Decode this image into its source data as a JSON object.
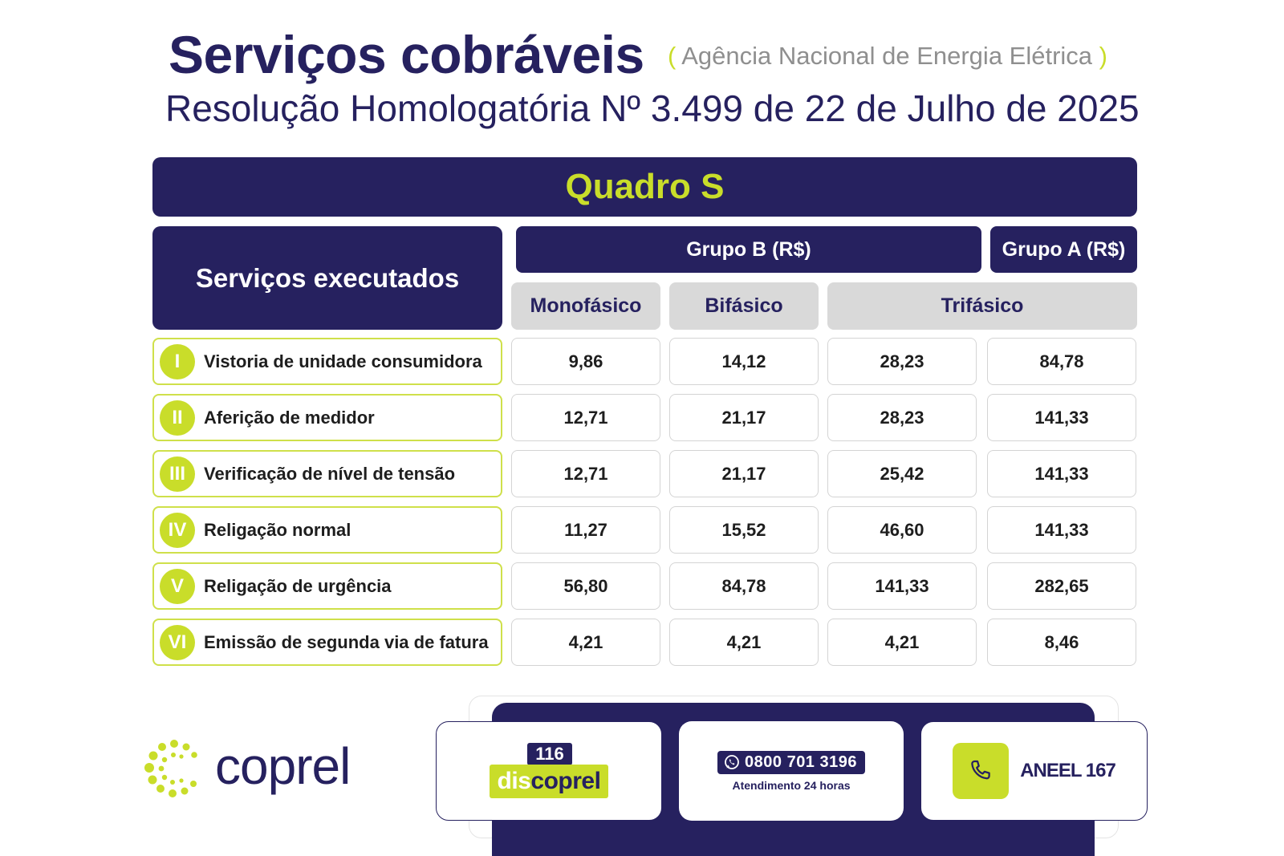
{
  "header": {
    "title": "Serviços cobráveis",
    "agency_open": "(",
    "agency": "Agência Nacional de Energia Elétrica",
    "agency_close": ")",
    "subtitle": "Resolução Homologatória Nº 3.499 de 22 de Julho de 2025"
  },
  "table": {
    "title": "Quadro S",
    "services_header": "Serviços executados",
    "group_b": "Grupo B (R$)",
    "group_a": "Grupo A (R$)",
    "sub_headers": [
      "Monofásico",
      "Bifásico",
      "Trifásico"
    ],
    "rows": [
      {
        "num": "I",
        "service": "Vistoria de unidade consumidora",
        "values": [
          "9,86",
          "14,12",
          "28,23",
          "84,78"
        ]
      },
      {
        "num": "II",
        "service": "Aferição de medidor",
        "values": [
          "12,71",
          "21,17",
          "28,23",
          "141,33"
        ]
      },
      {
        "num": "III",
        "service": "Verificação de nível de tensão",
        "values": [
          "12,71",
          "21,17",
          "25,42",
          "141,33"
        ]
      },
      {
        "num": "IV",
        "service": "Religação normal",
        "values": [
          "11,27",
          "15,52",
          "46,60",
          "141,33"
        ]
      },
      {
        "num": "V",
        "service": "Religação de urgência",
        "values": [
          "56,80",
          "84,78",
          "141,33",
          "282,65"
        ]
      },
      {
        "num": "VI",
        "service": "Emissão de segunda via de fatura",
        "values": [
          "4,21",
          "4,21",
          "4,21",
          "8,46"
        ]
      }
    ]
  },
  "footer": {
    "logo_text": "coprel",
    "disc_number": "116",
    "disc_word_a": "dis",
    "disc_word_b": "coprel",
    "whatsapp_number": "0800 701 3196",
    "whatsapp_caption": "Atendimento 24 horas",
    "aneel_label": "ANEEL 167"
  },
  "colors": {
    "navy": "#26215f",
    "lime": "#c9dd2a",
    "gray_header": "#d9d9d9"
  },
  "icons": [
    "coprel-logo-icon",
    "whatsapp-icon",
    "phone-icon"
  ]
}
